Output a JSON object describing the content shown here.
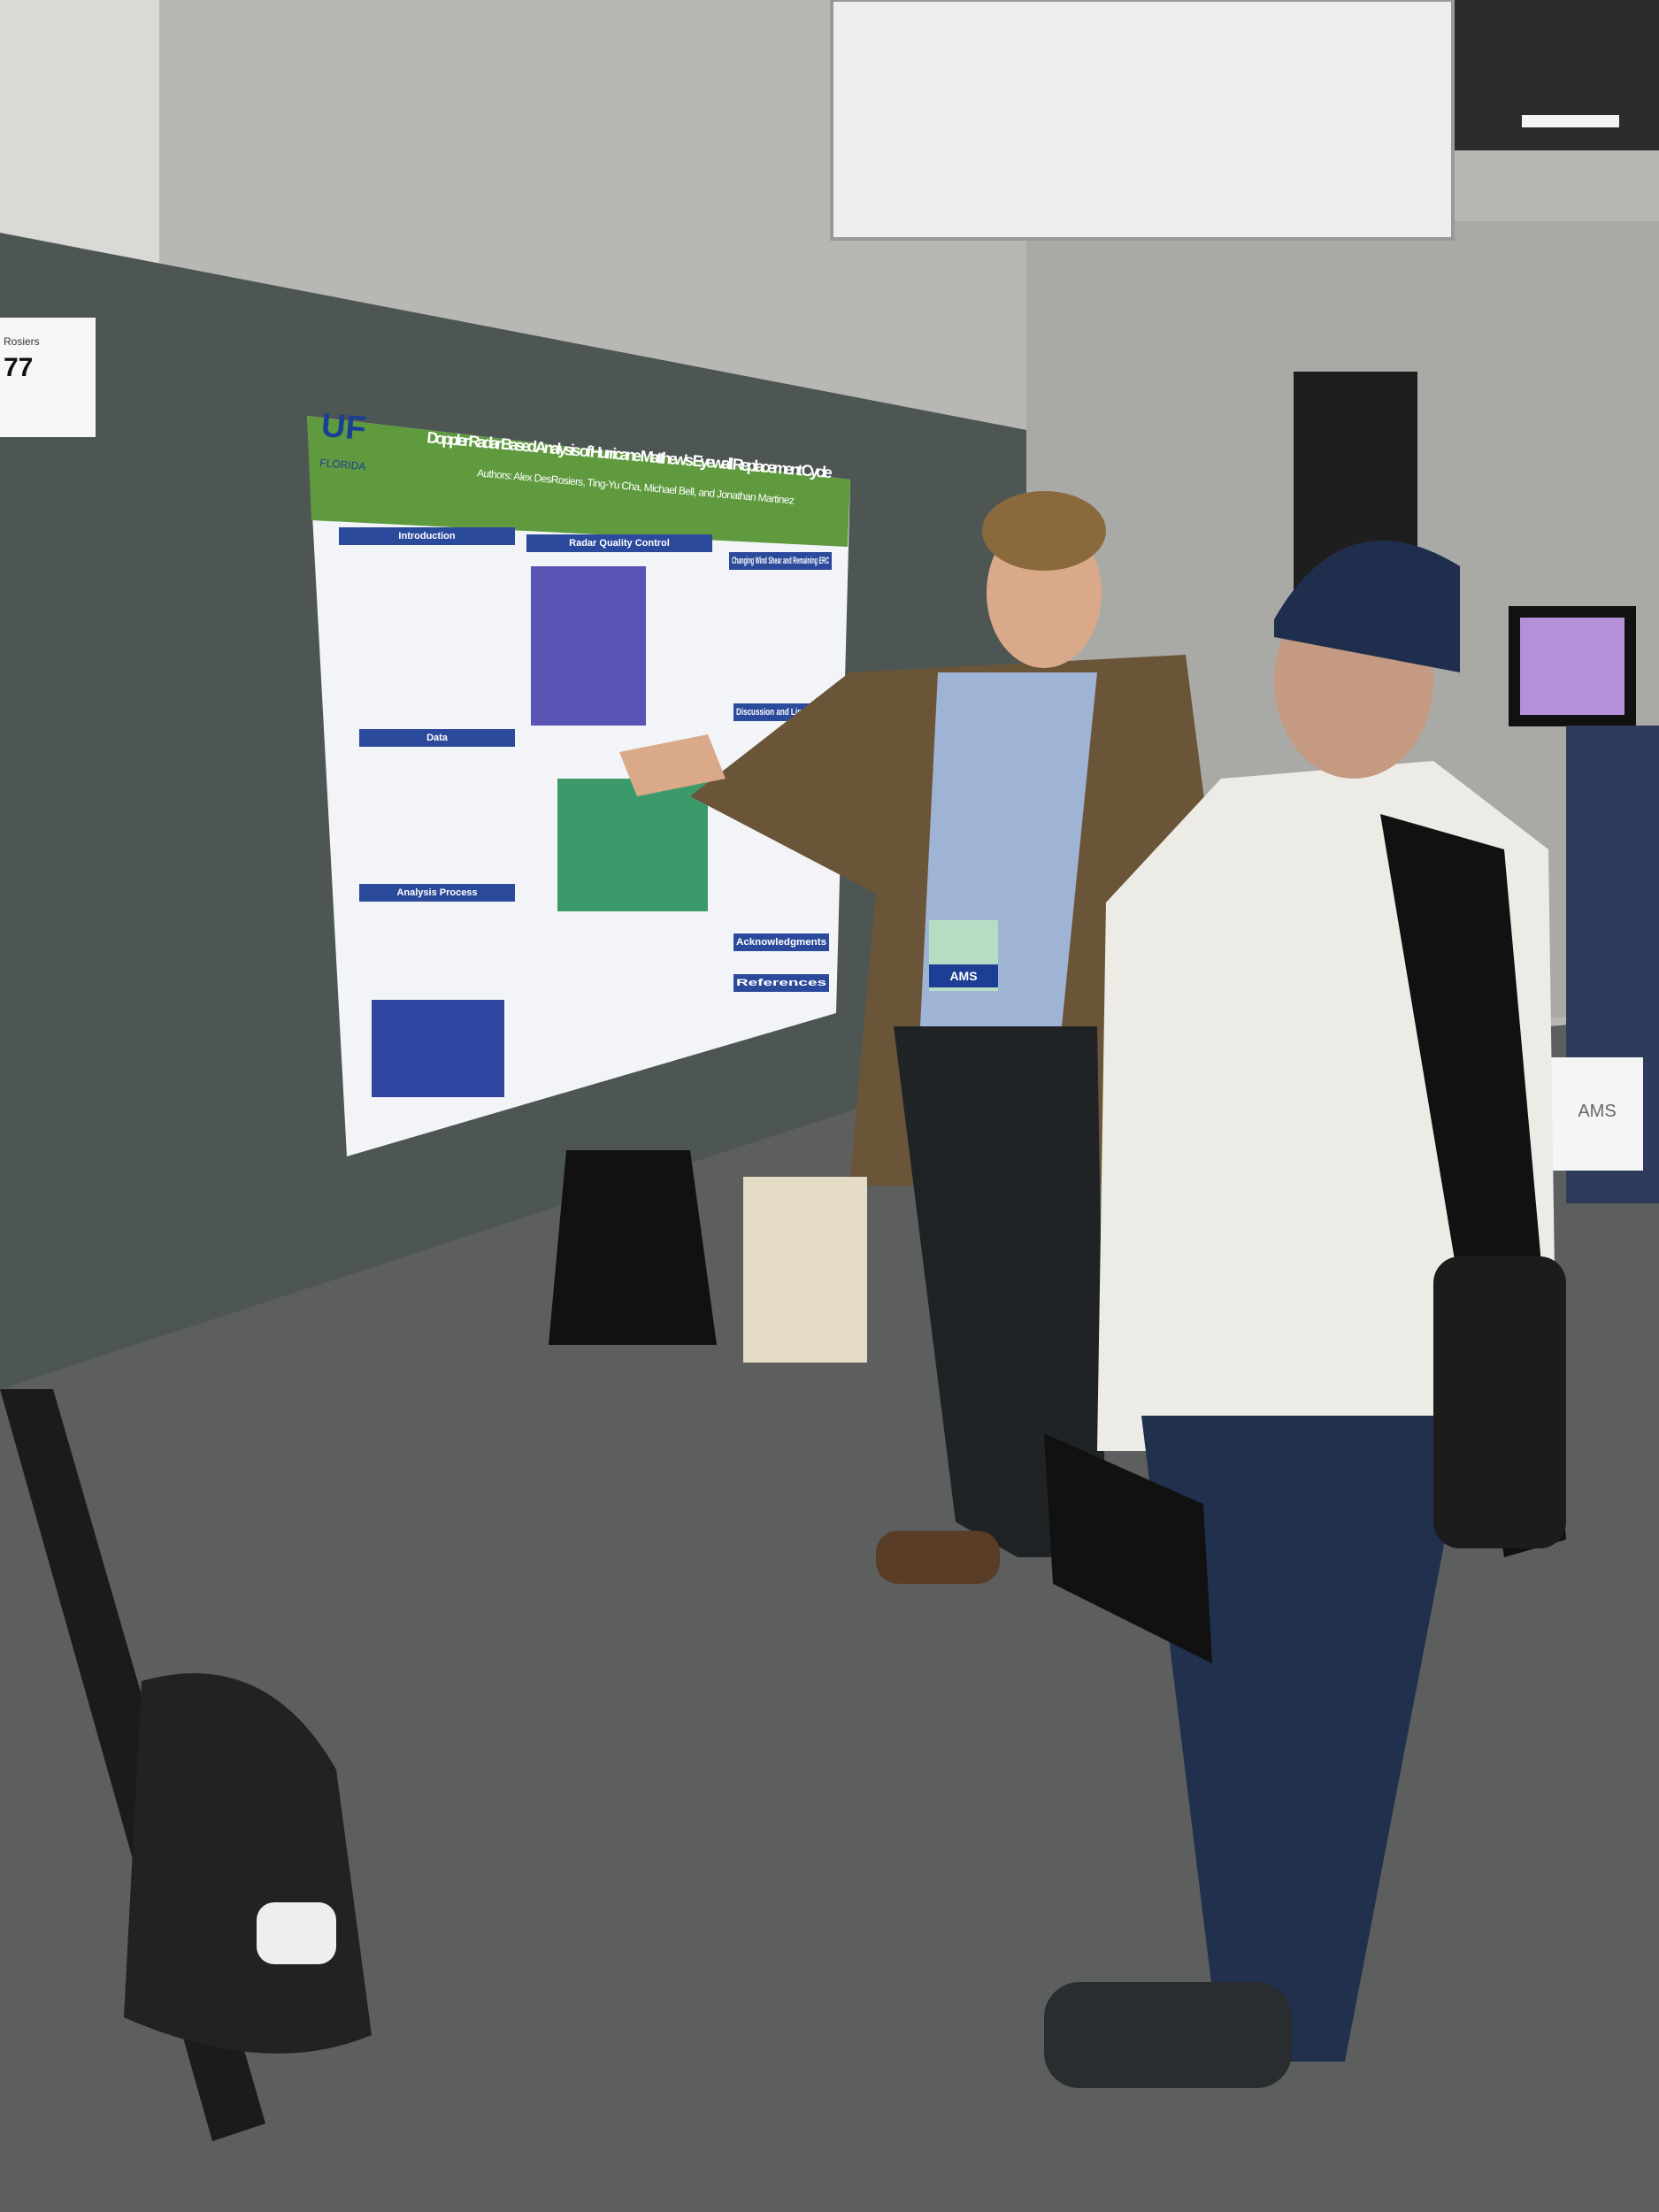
{
  "sign": {
    "number": "77",
    "name": "Rosiers"
  },
  "poster": {
    "logo": "UF",
    "logo_sub": "FLORIDA",
    "title": "Doppler Radar Based Analysis of Hurricane Matthew's Eyewall Replacement Cycle",
    "authors": "Authors: Alex DesRosiers, Ting-Yu Cha, Michael Bell, and Jonathan Martinez",
    "sections": [
      "Introduction",
      "Radar Quality Control",
      "Changing Wind Shear and Remaining ERC",
      "Data",
      "Analysis Process",
      "Discussion and Limitations",
      "Acknowledgments",
      "References"
    ]
  },
  "badge": "AMS",
  "bag": "AMS"
}
